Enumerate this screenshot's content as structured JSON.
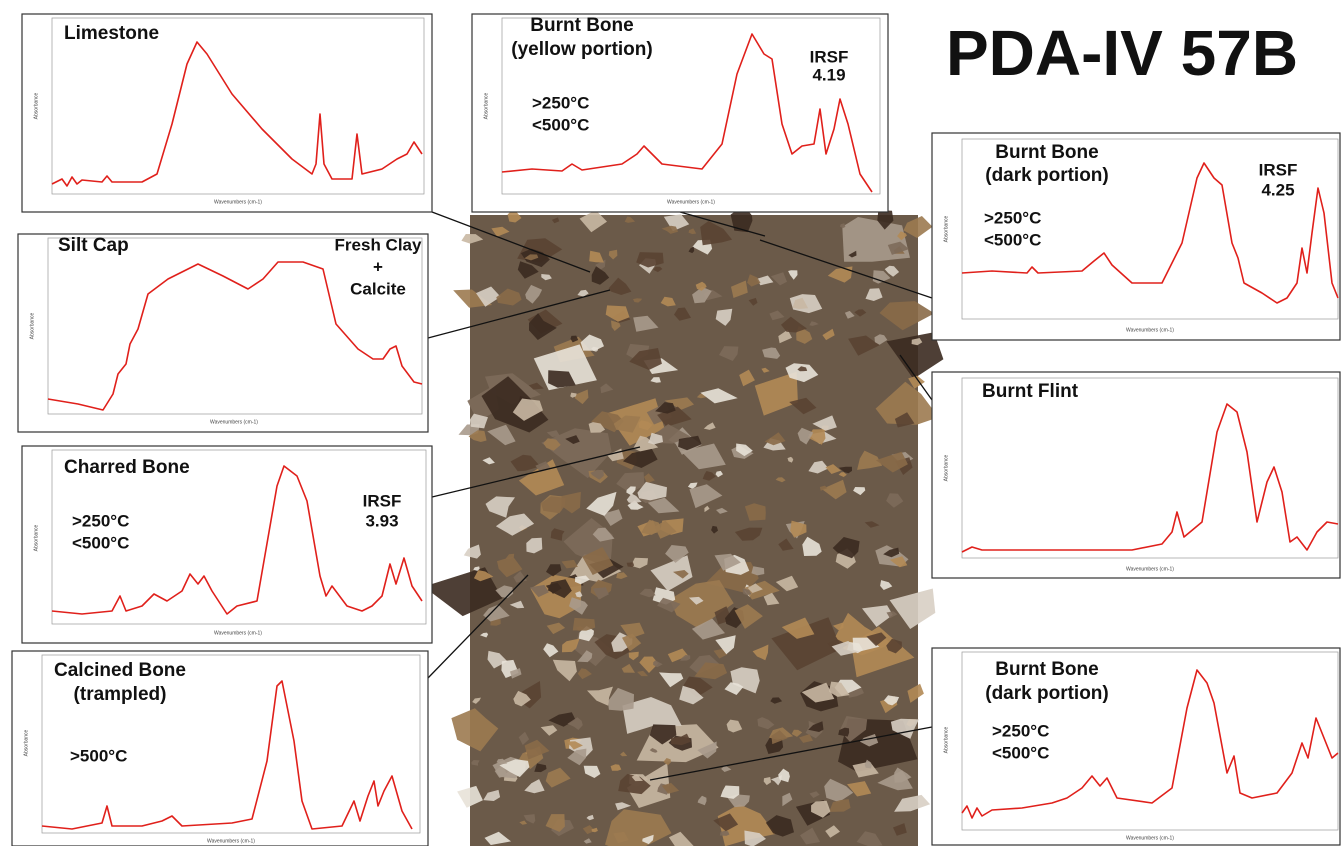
{
  "title": "PDA-IV 57B",
  "axis_labels": {
    "x": "Wavenumbers (cm-1)",
    "y": "Absorbance"
  },
  "panels": [
    {
      "label": [
        "Limestone"
      ],
      "notes": [],
      "irsf": []
    },
    {
      "label": [
        "Burnt Bone",
        "(yellow portion)"
      ],
      "notes": [
        ">250°C",
        "<500°C"
      ],
      "irsf": [
        "IRSF",
        "4.19"
      ]
    },
    {
      "label": [
        "Burnt Bone",
        "(dark portion)"
      ],
      "notes": [
        ">250°C",
        "<500°C"
      ],
      "irsf": [
        "IRSF",
        "4.25"
      ]
    },
    {
      "label": [
        "Silt Cap"
      ],
      "notes": [
        "Fresh Clay",
        "+",
        "Calcite"
      ],
      "irsf": []
    },
    {
      "label": [
        "Burnt Flint"
      ],
      "notes": [],
      "irsf": []
    },
    {
      "label": [
        "Charred Bone"
      ],
      "notes": [
        ">250°C",
        "<500°C"
      ],
      "irsf": [
        "IRSF",
        "3.93"
      ]
    },
    {
      "label": [
        "Calcined Bone",
        "(trampled)"
      ],
      "notes": [
        ">500°C"
      ],
      "irsf": []
    },
    {
      "label": [
        "Burnt Bone",
        "(dark portion)"
      ],
      "notes": [
        ">250°C",
        "<500°C"
      ],
      "irsf": []
    }
  ]
}
